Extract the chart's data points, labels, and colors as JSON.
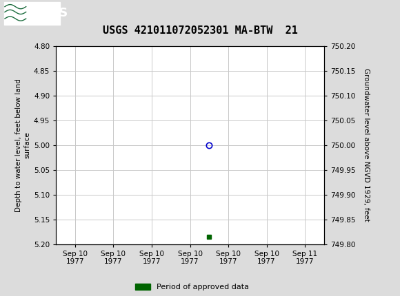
{
  "title": "USGS 421011072052301 MA-BTW  21",
  "title_fontsize": 11,
  "header_color": "#1a6b3c",
  "bg_color": "#dcdcdc",
  "plot_bg_color": "#ffffff",
  "left_ylabel": "Depth to water level, feet below land\nsurface",
  "right_ylabel": "Groundwater level above NGVD 1929, feet",
  "ylim_left": [
    4.8,
    5.2
  ],
  "ylim_right": [
    750.2,
    749.8
  ],
  "yticks_left": [
    4.8,
    4.85,
    4.9,
    4.95,
    5.0,
    5.05,
    5.1,
    5.15,
    5.2
  ],
  "yticks_right": [
    750.2,
    750.15,
    750.1,
    750.05,
    750.0,
    749.95,
    749.9,
    749.85,
    749.8
  ],
  "data_point_x": 3.5,
  "data_point_y": 5.0,
  "data_point_color": "#0000cc",
  "green_square_x": 3.5,
  "green_square_y": 5.185,
  "green_square_color": "#006400",
  "x_tick_labels": [
    "Sep 10\n1977",
    "Sep 10\n1977",
    "Sep 10\n1977",
    "Sep 10\n1977",
    "Sep 10\n1977",
    "Sep 10\n1977",
    "Sep 11\n1977"
  ],
  "x_tick_positions": [
    0,
    1,
    2,
    3,
    4,
    5,
    6
  ],
  "xlim": [
    -0.5,
    6.5
  ],
  "legend_label": "Period of approved data",
  "legend_color": "#006400",
  "grid_color": "#c8c8c8",
  "tick_font_size": 7.5,
  "axis_label_fontsize": 7.5
}
